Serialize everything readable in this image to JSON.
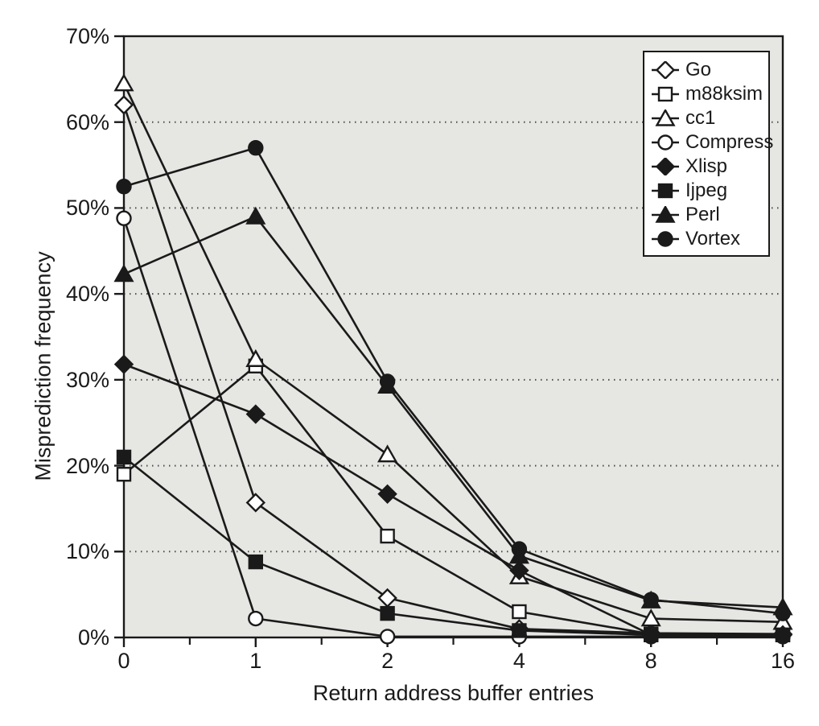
{
  "chart_data": {
    "type": "line",
    "title": "",
    "xlabel": "Return address buffer entries",
    "ylabel": "Misprediction frequency",
    "categories": [
      "0",
      "1",
      "2",
      "4",
      "8",
      "16"
    ],
    "y_tick_labels": [
      "0%",
      "10%",
      "20%",
      "30%",
      "40%",
      "50%",
      "60%",
      "70%"
    ],
    "ylim": [
      0,
      70
    ],
    "grid": "horizontal dotted lines every 10%",
    "legend_position": "top-right inside plot",
    "series": [
      {
        "name": "Go",
        "marker": "diamond-open",
        "values": [
          62.0,
          15.7,
          4.6,
          1.0,
          0.5,
          0.4
        ]
      },
      {
        "name": "m88ksim",
        "marker": "square-open",
        "values": [
          19.0,
          31.6,
          11.8,
          3.0,
          0.4,
          0.3
        ]
      },
      {
        "name": "cc1",
        "marker": "triangle-open",
        "values": [
          64.5,
          32.4,
          21.3,
          7.1,
          2.2,
          1.8
        ]
      },
      {
        "name": "Compress",
        "marker": "circle-open",
        "values": [
          48.8,
          2.2,
          0.1,
          0.1,
          0.1,
          0.1
        ]
      },
      {
        "name": "Xlisp",
        "marker": "diamond-filled",
        "values": [
          31.8,
          26.0,
          16.7,
          7.8,
          0.3,
          0.3
        ]
      },
      {
        "name": "Ijpeg",
        "marker": "square-filled",
        "values": [
          21.0,
          8.8,
          2.8,
          0.8,
          0.3,
          0.3
        ]
      },
      {
        "name": "Perl",
        "marker": "triangle-filled",
        "values": [
          42.3,
          49.0,
          29.3,
          9.5,
          4.3,
          3.5
        ]
      },
      {
        "name": "Vortex",
        "marker": "circle-filled",
        "values": [
          52.5,
          57.0,
          29.8,
          10.3,
          4.4,
          2.8
        ]
      }
    ],
    "colors": {
      "line": "#1a1a1a",
      "plot_background": "#e6e6e3",
      "legend_background": "#ffffff",
      "gridline": "#4a4a4a"
    }
  }
}
